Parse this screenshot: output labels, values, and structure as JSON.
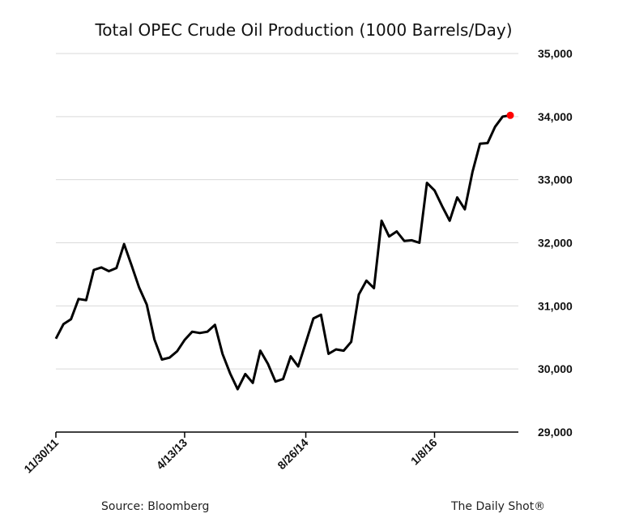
{
  "chart_data": {
    "type": "line",
    "title": "Total OPEC Crude Oil Production (1000 Barrels/Day)",
    "xlabel": "",
    "ylabel": "",
    "x_tick_labels": [
      "11/30/11",
      "4/13/13",
      "8/26/14",
      "1/8/16"
    ],
    "y_tick_labels": [
      "29,000",
      "30,000",
      "31,000",
      "32,000",
      "33,000",
      "34,000",
      "35,000"
    ],
    "ylim": [
      29000,
      35000
    ],
    "grid": true,
    "y_axis_side": "right",
    "x": [
      "2011-11-30",
      "2011-12-31",
      "2012-01-31",
      "2012-02-29",
      "2012-03-31",
      "2012-04-30",
      "2012-05-31",
      "2012-06-30",
      "2012-07-31",
      "2012-08-31",
      "2012-09-30",
      "2012-10-31",
      "2012-11-30",
      "2012-12-31",
      "2013-01-31",
      "2013-02-28",
      "2013-03-31",
      "2013-04-30",
      "2013-05-31",
      "2013-06-30",
      "2013-07-31",
      "2013-08-31",
      "2013-09-30",
      "2013-10-31",
      "2013-11-30",
      "2013-12-31",
      "2014-01-31",
      "2014-02-28",
      "2014-03-31",
      "2014-04-30",
      "2014-05-31",
      "2014-06-30",
      "2014-07-31",
      "2014-08-31",
      "2014-09-30",
      "2014-10-31",
      "2014-11-30",
      "2014-12-31",
      "2015-01-31",
      "2015-02-28",
      "2015-03-31",
      "2015-04-30",
      "2015-05-31",
      "2015-06-30",
      "2015-07-31",
      "2015-08-31",
      "2015-09-30",
      "2015-10-31",
      "2015-11-30",
      "2015-12-31",
      "2016-01-31",
      "2016-02-29",
      "2016-03-31",
      "2016-04-30",
      "2016-05-31",
      "2016-06-30",
      "2016-07-31",
      "2016-08-31",
      "2016-09-30",
      "2016-10-31",
      "2016-11-30"
    ],
    "series": [
      {
        "color": "#000000",
        "values": [
          30480,
          30710,
          30790,
          31110,
          31090,
          31570,
          31610,
          31550,
          31600,
          31980,
          31640,
          31290,
          31020,
          30470,
          30150,
          30180,
          30280,
          30460,
          30590,
          30570,
          30590,
          30700,
          30240,
          29930,
          29680,
          29920,
          29780,
          30290,
          30080,
          29800,
          29840,
          30200,
          30040,
          30420,
          30800,
          30860,
          30240,
          30310,
          30290,
          30430,
          31180,
          31400,
          31280,
          32350,
          32100,
          32180,
          32030,
          32040,
          32000,
          32950,
          32830,
          32580,
          32350,
          32720,
          32530,
          33120,
          33570,
          33580,
          33840,
          34000,
          34020
        ]
      }
    ],
    "highlight_last_point": {
      "color": "#ff0000"
    }
  },
  "footer": {
    "source": "Source: Bloomberg",
    "brand": "The Daily Shot®"
  }
}
